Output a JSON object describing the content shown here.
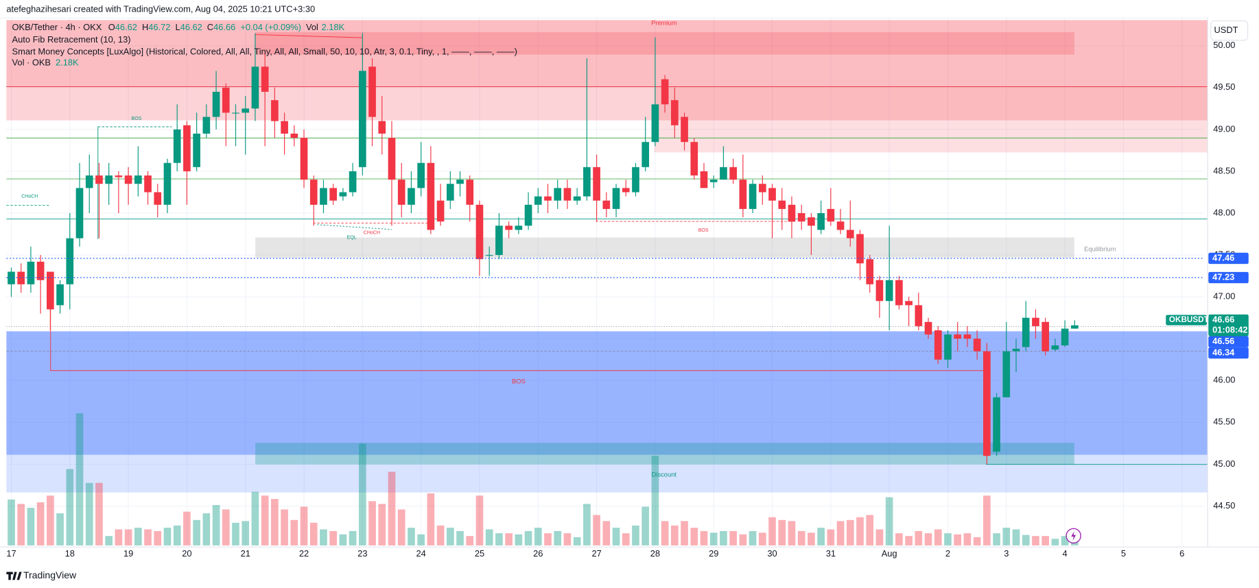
{
  "chart_data": {
    "type": "candlestick",
    "credit": "atefeghazihesari created with TradingView.com, Aug 04, 2025 10:21 UTC+3:30",
    "header": {
      "symbol": "OKB/Tether · 4h · OKX",
      "o_label": "O",
      "open": 46.62,
      "h_label": "H",
      "high": 46.72,
      "l_label": "L",
      "low": 46.62,
      "c_label": "C",
      "close": 46.66,
      "change": "+0.04 (+0.09%)",
      "vol_label": "Vol",
      "vol": "2.18K"
    },
    "indicators": [
      "Auto Fib Retracement (10, 13)",
      "Smart Money Concepts [LuxAlgo] (Historical, Colored, All, All, Tiny, All, All, Small, 50, 10, 10, Atr, 3, 0.1, Tiny, , 1, ——, ——, ——)"
    ],
    "volume_legend": {
      "name": "Vol · OKB",
      "value": "2.18K"
    },
    "currency": "USDT",
    "footer": "TradingView",
    "annotations": [
      "Premium",
      "Equilibrium",
      "Discount",
      "BOS",
      "BOS",
      "BOS",
      "CHoCH",
      "CHoCH",
      "EQL"
    ],
    "up_color": "#089981",
    "down_color": "#f23645",
    "grid": true,
    "xlim": [
      -0.5,
      122.3
    ],
    "xticks": [
      {
        "value": 0,
        "label": "17"
      },
      {
        "value": 6,
        "label": "18"
      },
      {
        "value": 12,
        "label": "19"
      },
      {
        "value": 18,
        "label": "20"
      },
      {
        "value": 24,
        "label": "21"
      },
      {
        "value": 30,
        "label": "22"
      },
      {
        "value": 36,
        "label": "23"
      },
      {
        "value": 42,
        "label": "24"
      },
      {
        "value": 48,
        "label": "25"
      },
      {
        "value": 54,
        "label": "26"
      },
      {
        "value": 60,
        "label": "27"
      },
      {
        "value": 66,
        "label": "28"
      },
      {
        "value": 72,
        "label": "29"
      },
      {
        "value": 78,
        "label": "30"
      },
      {
        "value": 84,
        "label": "31"
      },
      {
        "value": 90,
        "label": "Aug"
      },
      {
        "value": 96,
        "label": "2"
      },
      {
        "value": 102,
        "label": "3"
      },
      {
        "value": 108,
        "label": "4"
      },
      {
        "value": 114,
        "label": "5"
      },
      {
        "value": 120,
        "label": "6"
      }
    ],
    "ylim": [
      44.03,
      50.335
    ],
    "yticks": [
      {
        "value": 44.5,
        "label": "44.50"
      },
      {
        "value": 45,
        "label": "45.00"
      },
      {
        "value": 45.5,
        "label": "45.50"
      },
      {
        "value": 46,
        "label": "46.00"
      },
      {
        "value": 46.5,
        "label": "46.50"
      },
      {
        "value": 47,
        "label": "47.00"
      },
      {
        "value": 47.5,
        "label": "47.50"
      },
      {
        "value": 48,
        "label": "48.00"
      },
      {
        "value": 48.5,
        "label": "48.50"
      },
      {
        "value": 49,
        "label": "49.00"
      },
      {
        "value": 49.5,
        "label": "49.50"
      },
      {
        "value": 50,
        "label": "50.00"
      }
    ],
    "vlim": [
      0,
      30
    ],
    "open": [
      47.15,
      47.3,
      47.15,
      47.42,
      47.3,
      46.9,
      47.15,
      47.7,
      48.3,
      48.45,
      48.35,
      48.45,
      48.45,
      48.35,
      48.45,
      48.25,
      48.1,
      48.6,
      49.05,
      48.55,
      48.95,
      49.15,
      49.5,
      49.2,
      49.2,
      49.25,
      49.75,
      49.35,
      49.1,
      48.95,
      48.9,
      48.4,
      48.1,
      48.3,
      48.2,
      48.25,
      48.55,
      49.75,
      49.1,
      48.9,
      48.4,
      48.1,
      48.3,
      48.6,
      48.15,
      48.15,
      48.35,
      48.4,
      48.1,
      47.5,
      47.5,
      47.85,
      47.8,
      47.85,
      48.1,
      48.2,
      48.15,
      48.3,
      48.15,
      48.2,
      48.55,
      48.15,
      48.05,
      48.3,
      48.25,
      48.55,
      48.85,
      49.6,
      49.35,
      49.15,
      48.85,
      48.5,
      48.37,
      48.4,
      48.55,
      48.4,
      48.05,
      48.35,
      48.3,
      48.15,
      48.1,
      48.0,
      47.95,
      47.8,
      48.05,
      47.9,
      47.8,
      47.75,
      47.45,
      47.2,
      46.95,
      47.2,
      46.95,
      46.9,
      46.7,
      46.6,
      46.25,
      46.55,
      46.55,
      46.5,
      46.35,
      45.15,
      45.8,
      46.35,
      46.4,
      46.75,
      46.7,
      46.37,
      46.42,
      46.62
    ],
    "high": [
      47.35,
      47.4,
      47.6,
      47.5,
      47.3,
      47.2,
      48.0,
      48.6,
      48.7,
      48.6,
      48.6,
      48.5,
      48.55,
      48.8,
      48.5,
      48.35,
      48.65,
      49.3,
      49.1,
      49.2,
      49.3,
      49.7,
      49.55,
      49.3,
      49.4,
      50.15,
      49.9,
      49.5,
      49.2,
      49.05,
      49.0,
      48.45,
      48.4,
      48.35,
      48.3,
      48.6,
      50.15,
      49.85,
      49.4,
      49.1,
      48.6,
      48.5,
      48.85,
      48.8,
      48.35,
      48.5,
      48.5,
      48.45,
      48.15,
      47.6,
      48.0,
      47.9,
      47.95,
      48.25,
      48.3,
      48.35,
      48.4,
      48.4,
      48.3,
      49.85,
      48.7,
      48.25,
      48.35,
      48.4,
      48.6,
      49.15,
      50.1,
      49.65,
      49.5,
      49.2,
      48.9,
      48.6,
      48.45,
      48.8,
      48.65,
      48.7,
      48.4,
      48.45,
      48.35,
      48.3,
      48.2,
      48.1,
      48.0,
      48.15,
      48.3,
      48.05,
      48.15,
      47.8,
      47.5,
      47.25,
      47.85,
      47.25,
      47.0,
      47.05,
      46.75,
      46.65,
      46.6,
      46.7,
      46.65,
      46.6,
      46.45,
      45.85,
      46.7,
      46.5,
      46.95,
      46.85,
      46.75,
      46.5,
      46.72,
      46.72
    ],
    "low": [
      47.0,
      47.05,
      47.05,
      46.8,
      46.6,
      46.8,
      46.85,
      47.6,
      48.0,
      47.7,
      48.1,
      48.0,
      48.1,
      48.2,
      48.1,
      47.95,
      48.0,
      48.5,
      48.1,
      48.5,
      48.9,
      49.0,
      48.8,
      48.8,
      48.7,
      49.1,
      48.8,
      48.9,
      48.7,
      48.8,
      48.3,
      47.85,
      48.0,
      48.1,
      48.15,
      48.2,
      48.45,
      48.8,
      48.7,
      47.85,
      47.95,
      48.0,
      48.2,
      47.75,
      47.85,
      48.05,
      48.2,
      47.9,
      47.25,
      47.25,
      47.45,
      47.7,
      47.75,
      47.8,
      48.0,
      48.0,
      48.05,
      48.05,
      48.1,
      48.15,
      47.9,
      47.95,
      47.95,
      48.2,
      48.2,
      48.5,
      48.8,
      49.2,
      48.9,
      48.75,
      48.4,
      48.3,
      48.3,
      48.4,
      48.35,
      47.95,
      48.0,
      48.1,
      47.7,
      47.8,
      47.7,
      47.8,
      47.5,
      47.75,
      47.85,
      47.75,
      47.6,
      47.2,
      47.05,
      46.75,
      46.6,
      46.85,
      46.65,
      46.6,
      46.5,
      46.2,
      46.15,
      46.35,
      46.4,
      46.25,
      45.0,
      45.1,
      45.8,
      46.1,
      46.35,
      46.5,
      46.3,
      46.35,
      46.4,
      46.62
    ],
    "close": [
      47.3,
      47.15,
      47.42,
      47.2,
      46.85,
      47.15,
      47.7,
      48.3,
      48.45,
      48.35,
      48.45,
      48.43,
      48.35,
      48.45,
      48.25,
      48.1,
      48.6,
      49.0,
      48.5,
      48.95,
      49.15,
      49.45,
      49.2,
      49.2,
      49.25,
      49.75,
      49.45,
      49.1,
      48.95,
      48.9,
      48.4,
      48.1,
      48.3,
      48.15,
      48.25,
      48.5,
      49.7,
      49.15,
      48.95,
      48.4,
      48.1,
      48.3,
      48.6,
      47.8,
      47.9,
      48.35,
      48.4,
      48.1,
      47.45,
      47.5,
      47.85,
      47.8,
      47.85,
      48.1,
      48.2,
      48.15,
      48.3,
      48.15,
      48.2,
      48.55,
      48.15,
      48.05,
      48.3,
      48.25,
      48.55,
      48.85,
      49.3,
      49.3,
      49.05,
      48.85,
      48.45,
      48.3,
      48.4,
      48.55,
      48.4,
      48.05,
      48.35,
      48.25,
      48.15,
      48.05,
      47.9,
      47.9,
      47.85,
      48.0,
      47.9,
      47.8,
      47.7,
      47.4,
      47.15,
      46.95,
      47.2,
      46.9,
      46.9,
      46.65,
      46.55,
      46.25,
      46.55,
      46.5,
      46.5,
      46.35,
      45.1,
      45.8,
      46.35,
      46.38,
      46.75,
      46.65,
      46.35,
      46.42,
      46.62,
      46.66
    ],
    "volume": [
      8.3,
      7.5,
      6.8,
      7.8,
      9.0,
      5.8,
      13.8,
      23.9,
      11.3,
      11.3,
      1.7,
      2.9,
      2.9,
      3.2,
      2.9,
      2.6,
      3.2,
      3.6,
      6.1,
      4.6,
      5.8,
      7.3,
      6.5,
      4.1,
      4.4,
      9.7,
      9.0,
      8.4,
      6.5,
      4.6,
      7.0,
      4.1,
      2.9,
      2.6,
      2.0,
      2.6,
      18.4,
      8.0,
      7.5,
      13.3,
      6.5,
      3.2,
      2.0,
      9.4,
      3.6,
      3.2,
      2.6,
      1.7,
      9.0,
      2.9,
      2.2,
      2.2,
      2.0,
      2.6,
      3.2,
      2.2,
      2.6,
      2.2,
      1.5,
      7.5,
      5.5,
      4.4,
      3.2,
      2.2,
      3.6,
      7.0,
      16.2,
      4.4,
      3.6,
      4.4,
      3.2,
      2.6,
      2.3,
      2.6,
      2.6,
      2.0,
      2.6,
      2.3,
      5.1,
      4.6,
      4.4,
      2.6,
      2.3,
      3.2,
      2.9,
      4.4,
      4.6,
      5.1,
      5.5,
      2.9,
      8.7,
      2.2,
      1.7,
      2.6,
      2.2,
      2.9,
      2.2,
      2.0,
      2.2,
      1.5,
      9.0,
      2.2,
      3.2,
      2.9,
      1.9,
      1.7,
      1.7,
      1.2,
      1.7,
      2.18
    ],
    "price_lines": [
      {
        "value": 47.46,
        "color": "#2962ff"
      },
      {
        "value": 47.23,
        "color": "#2962ff"
      }
    ],
    "last_price": {
      "symbol": "OKBUSDT",
      "value": 46.66,
      "countdown": "01:08:42",
      "color": "#089981"
    },
    "level_labels": [
      {
        "value": 46.56,
        "color": "#2962ff"
      },
      {
        "value": 46.34,
        "color": "#2962ff"
      }
    ]
  }
}
